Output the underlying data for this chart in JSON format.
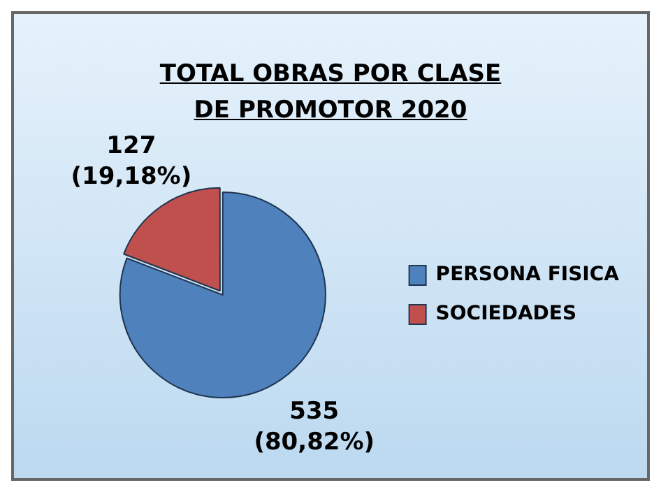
{
  "chart_data": {
    "type": "pie",
    "title": "TOTAL OBRAS POR CLASE DE PROMOTOR 2020",
    "categories": [
      "PERSONA FISICA",
      "SOCIEDADES"
    ],
    "values": [
      535,
      127
    ],
    "colors": [
      "#4f81bd",
      "#c0504d"
    ],
    "value_labels": [
      "535\n(80,82%)",
      "127\n(19,18%)"
    ],
    "legend": "right"
  }
}
